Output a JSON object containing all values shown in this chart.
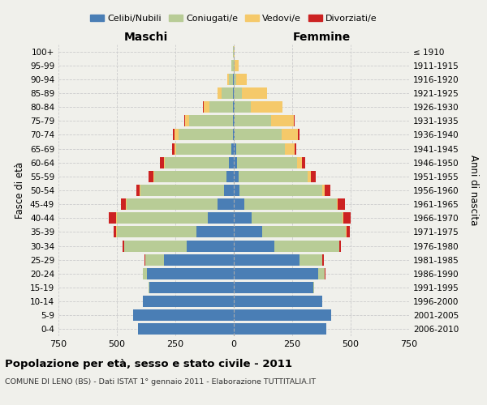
{
  "age_groups": [
    "0-4",
    "5-9",
    "10-14",
    "15-19",
    "20-24",
    "25-29",
    "30-34",
    "35-39",
    "40-44",
    "45-49",
    "50-54",
    "55-59",
    "60-64",
    "65-69",
    "70-74",
    "75-79",
    "80-84",
    "85-89",
    "90-94",
    "95-99",
    "100+"
  ],
  "birth_years": [
    "2006-2010",
    "2001-2005",
    "1996-2000",
    "1991-1995",
    "1986-1990",
    "1981-1985",
    "1976-1980",
    "1971-1975",
    "1966-1970",
    "1961-1965",
    "1956-1960",
    "1951-1955",
    "1946-1950",
    "1941-1945",
    "1936-1940",
    "1931-1935",
    "1926-1930",
    "1921-1925",
    "1916-1920",
    "1911-1915",
    "≤ 1910"
  ],
  "maschi": {
    "celibi": [
      410,
      430,
      390,
      360,
      370,
      300,
      200,
      160,
      110,
      70,
      40,
      30,
      20,
      10,
      5,
      5,
      5,
      3,
      2,
      1,
      0
    ],
    "coniugati": [
      0,
      0,
      0,
      5,
      20,
      80,
      270,
      340,
      390,
      390,
      360,
      310,
      275,
      235,
      230,
      185,
      100,
      50,
      20,
      8,
      2
    ],
    "vedovi": [
      0,
      0,
      0,
      0,
      0,
      0,
      0,
      2,
      3,
      3,
      3,
      4,
      5,
      10,
      20,
      20,
      25,
      15,
      5,
      2,
      1
    ],
    "divorziati": [
      0,
      0,
      0,
      0,
      0,
      3,
      5,
      12,
      30,
      20,
      15,
      20,
      15,
      8,
      5,
      2,
      1,
      1,
      0,
      0,
      0
    ]
  },
  "femmine": {
    "nubili": [
      395,
      415,
      380,
      340,
      360,
      280,
      175,
      120,
      75,
      45,
      25,
      20,
      15,
      10,
      5,
      3,
      2,
      1,
      1,
      0,
      0
    ],
    "coniugate": [
      0,
      0,
      0,
      5,
      30,
      100,
      275,
      360,
      390,
      395,
      355,
      295,
      255,
      210,
      200,
      155,
      70,
      35,
      10,
      5,
      1
    ],
    "vedove": [
      0,
      0,
      0,
      0,
      0,
      0,
      2,
      3,
      5,
      5,
      8,
      15,
      20,
      40,
      70,
      100,
      135,
      105,
      45,
      15,
      3
    ],
    "divorziate": [
      0,
      0,
      0,
      0,
      2,
      5,
      5,
      15,
      30,
      30,
      25,
      20,
      15,
      8,
      5,
      2,
      1,
      1,
      0,
      0,
      0
    ]
  },
  "color_celibi": "#4a7eb5",
  "color_coniugati": "#b8cc96",
  "color_vedovi": "#f5c96a",
  "color_divorziati": "#cc2222",
  "xlim": 750,
  "title": "Popolazione per età, sesso e stato civile - 2011",
  "subtitle": "COMUNE DI LENO (BS) - Dati ISTAT 1° gennaio 2011 - Elaborazione TUTTITALIA.IT",
  "ylabel_left": "Fasce di età",
  "ylabel_right": "Anni di nascita",
  "xlabel_left": "Maschi",
  "xlabel_right": "Femmine",
  "bg_color": "#f0f0eb",
  "grid_color": "#cccccc"
}
